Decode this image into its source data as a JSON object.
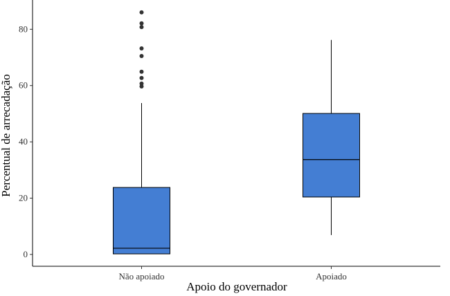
{
  "chart_data": {
    "type": "boxplot",
    "x_label": "Apoio do governador",
    "y_label": "Percentual de arrecadação",
    "categories": [
      "Não apoiado",
      "Apoiado"
    ],
    "boxes": [
      {
        "min": 0.2,
        "q1": 0.2,
        "median": 2.2,
        "q3": 23.8,
        "max": 53.8,
        "outliers": [
          86.0,
          82.1,
          80.8,
          73.2,
          70.5,
          64.9,
          62.7,
          60.7,
          59.7
        ]
      },
      {
        "min": 6.9,
        "q1": 20.4,
        "median": 33.7,
        "q3": 50.1,
        "max": 76.2,
        "outliers": []
      }
    ],
    "color": "#447ed3",
    "ylim": [
      -4.2,
      90.4
    ],
    "yticks": [
      0,
      20,
      40,
      60,
      80
    ]
  }
}
